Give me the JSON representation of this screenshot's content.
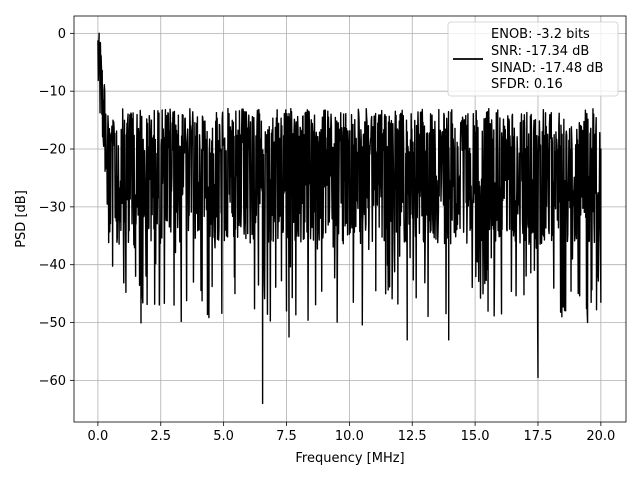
{
  "chart_data": {
    "type": "line",
    "xlabel": "Frequency [MHz]",
    "ylabel": "PSD [dB]",
    "xlim": [
      -0.95,
      21.0
    ],
    "ylim": [
      -67.2,
      3.0
    ],
    "x_ticks": [
      0.0,
      2.5,
      5.0,
      7.5,
      10.0,
      12.5,
      15.0,
      17.5,
      20.0
    ],
    "x_tick_labels": [
      "0.0",
      "2.5",
      "5.0",
      "7.5",
      "10.0",
      "12.5",
      "15.0",
      "17.5",
      "20.0"
    ],
    "y_ticks": [
      0,
      -10,
      -20,
      -30,
      -40,
      -50,
      -60
    ],
    "y_tick_labels": [
      "0",
      "−10",
      "−20",
      "−30",
      "−40",
      "−50",
      "−60"
    ],
    "grid": true,
    "legend": {
      "placement": "top-right",
      "lines": [
        "ENOB: -3.2 bits",
        "SNR: -17.34 dB",
        "SINAD: -17.48 dB",
        "SFDR: 0.16"
      ]
    },
    "series": [
      {
        "color": "#000000",
        "x_range": [
          0.0,
          20.0
        ],
        "baseline_db": -22.5,
        "peak": {
          "x": 0.05,
          "y": 0.0
        },
        "approx_upper_envelope_db": -13.0,
        "notable_dips": [
          {
            "x": 6.55,
            "y": -64.0
          },
          {
            "x": 7.6,
            "y": -52.5
          },
          {
            "x": 7.5,
            "y": -48.0
          },
          {
            "x": 12.3,
            "y": -53.0
          },
          {
            "x": 13.95,
            "y": -53.0
          },
          {
            "x": 17.5,
            "y": -59.5
          },
          {
            "x": 16.05,
            "y": -48.5
          },
          {
            "x": 18.45,
            "y": -49.0
          },
          {
            "x": 20.0,
            "y": -46.5
          },
          {
            "x": 1.5,
            "y": -42.0
          },
          {
            "x": 5.45,
            "y": -45.0
          },
          {
            "x": 11.05,
            "y": -44.5
          },
          {
            "x": 19.1,
            "y": -45.0
          }
        ]
      }
    ]
  }
}
